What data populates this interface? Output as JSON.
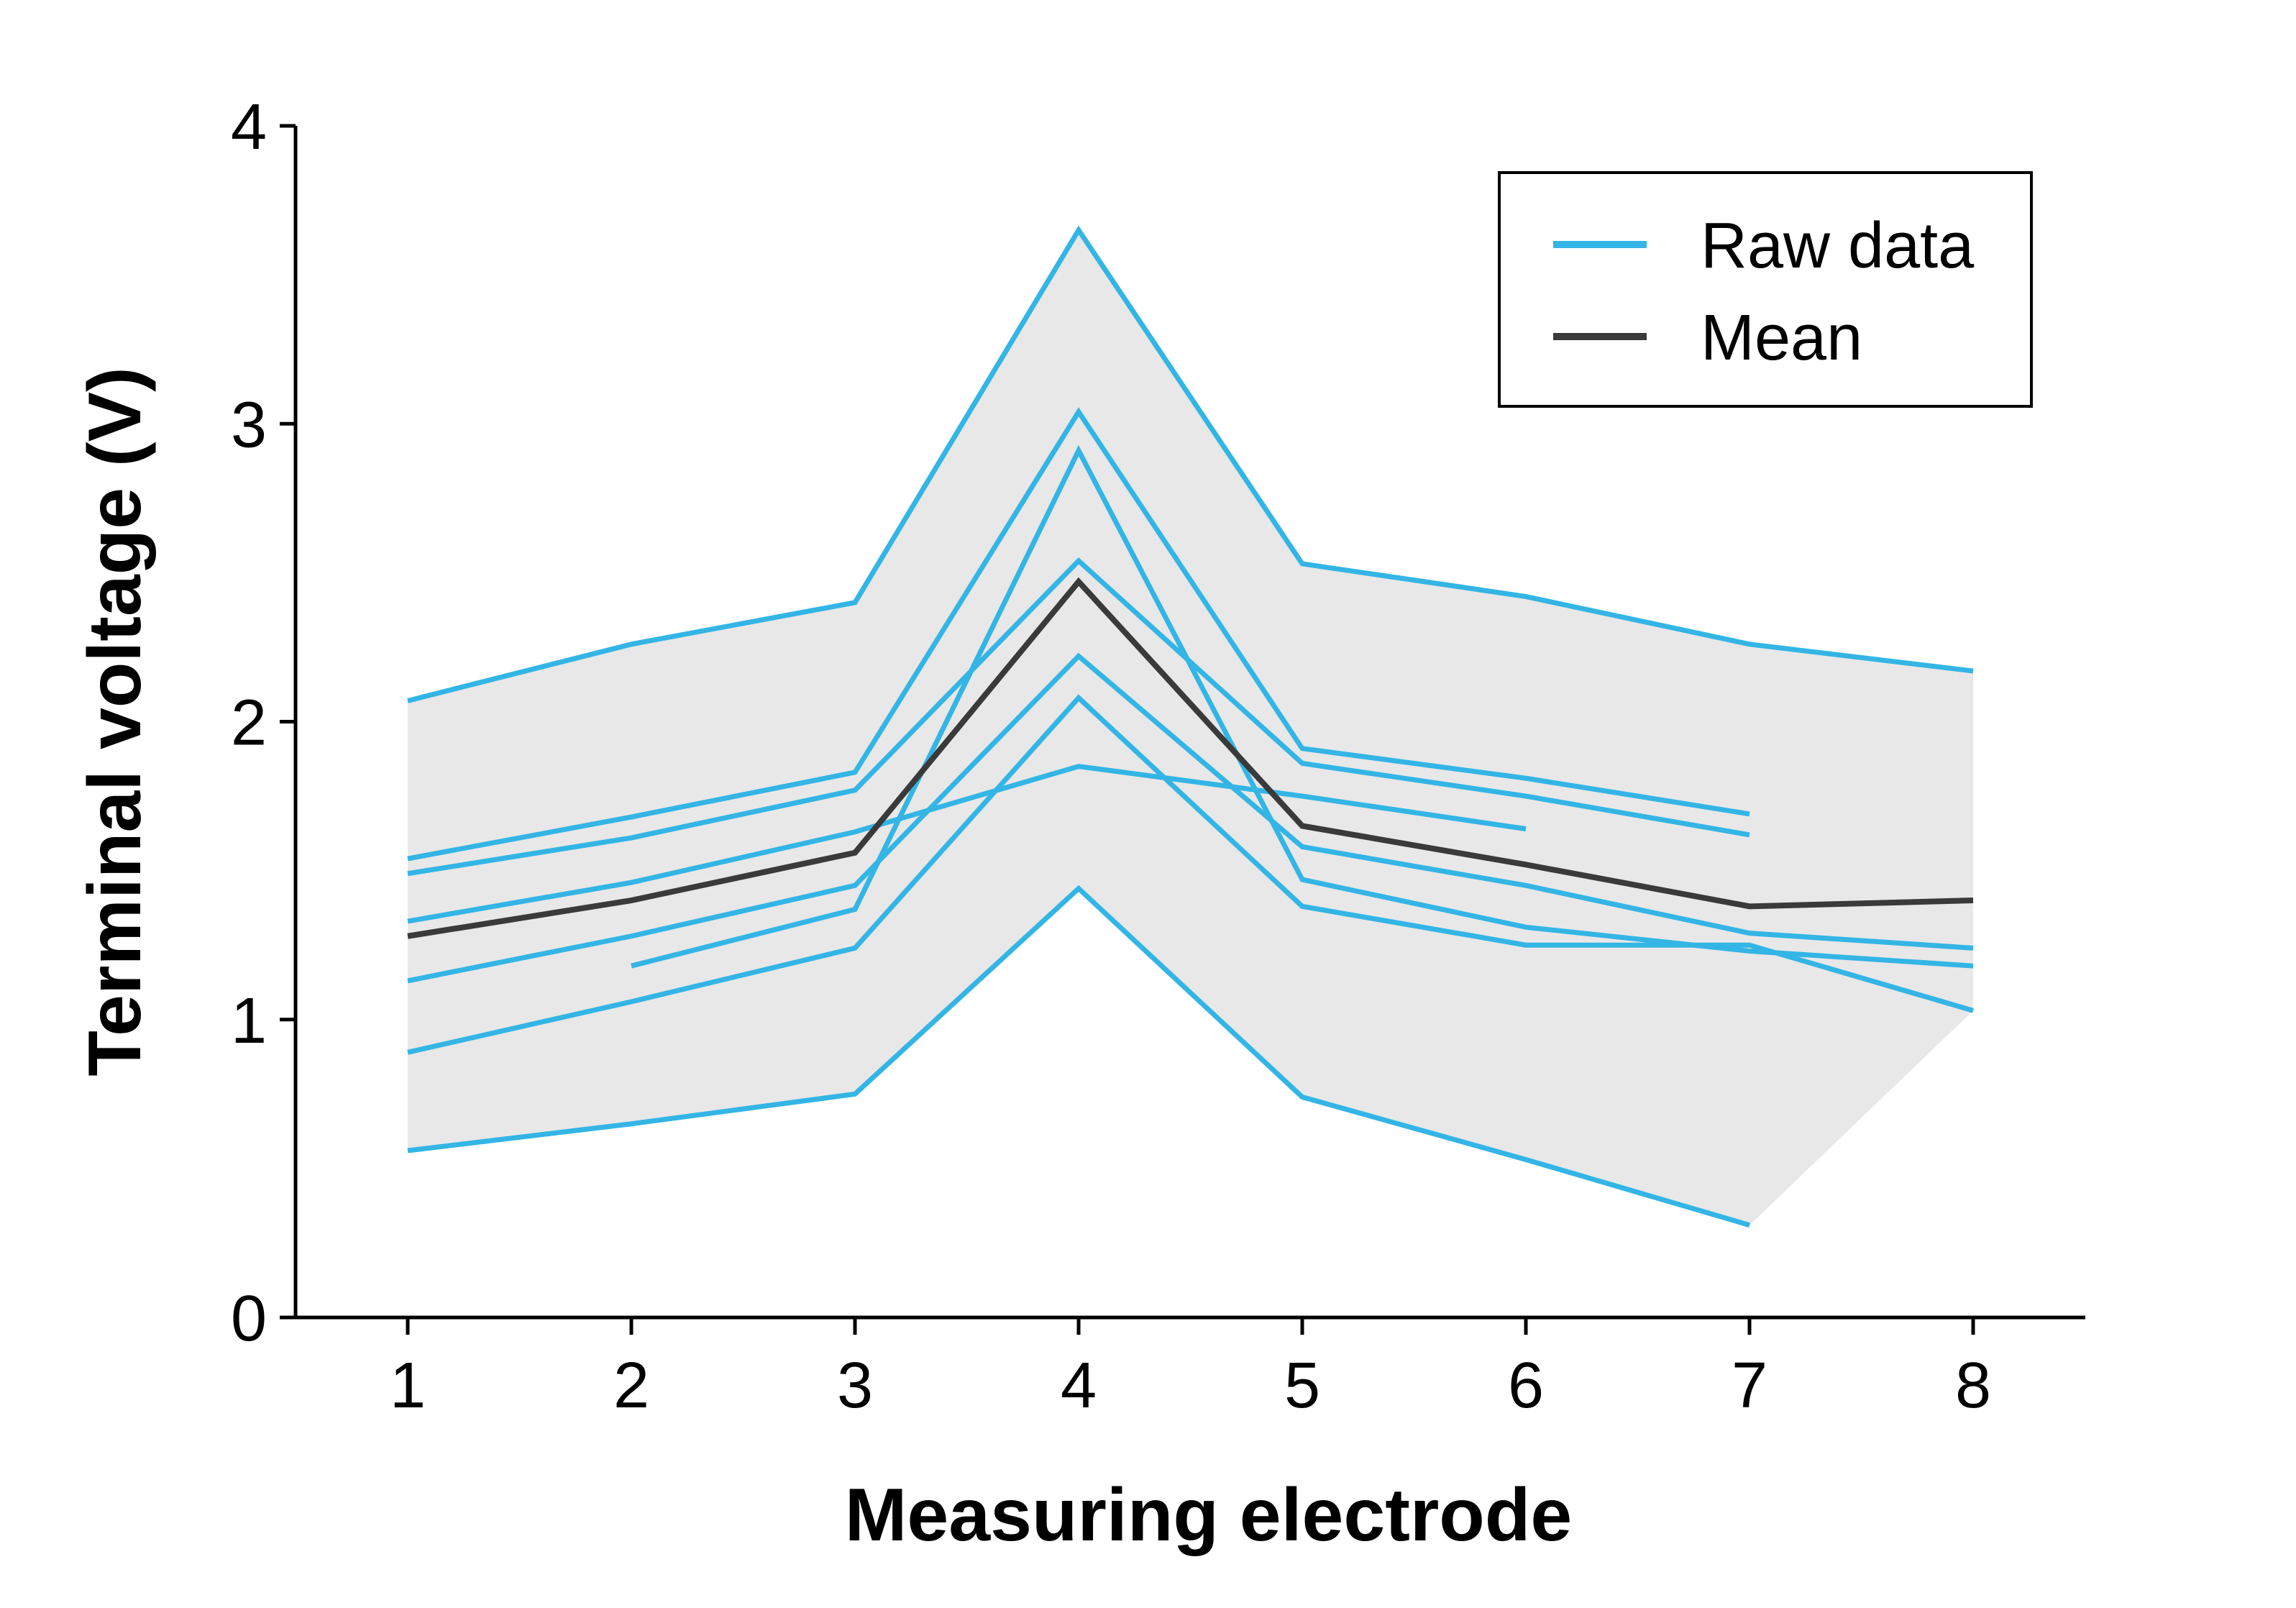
{
  "chart_data": {
    "type": "line",
    "title": "",
    "xlabel": "Measuring electrode",
    "ylabel": "Terminal voltage (V)",
    "xlim": [
      0.5,
      8.5
    ],
    "ylim": [
      0,
      4
    ],
    "x_ticks": [
      1,
      2,
      3,
      4,
      5,
      6,
      7,
      8
    ],
    "y_ticks": [
      0,
      1,
      2,
      3,
      4
    ],
    "grid": false,
    "legend": {
      "position": "top-right",
      "entries": [
        "Raw data",
        "Mean"
      ]
    },
    "colors": {
      "raw": "#33b5e5",
      "mean": "#3a3a3a",
      "band": "#e8e8e8",
      "axis": "#000000"
    },
    "range_band": {
      "x": [
        1,
        2,
        3,
        4,
        5,
        6,
        7,
        8
      ],
      "upper": [
        2.07,
        2.26,
        2.4,
        3.65,
        2.53,
        2.42,
        2.26,
        2.17
      ],
      "lower": [
        0.56,
        0.65,
        0.75,
        1.44,
        0.74,
        0.53,
        0.31,
        1.03
      ]
    },
    "series": [
      {
        "kind": "raw",
        "x": [
          1,
          2,
          3,
          4,
          5,
          6,
          7,
          8
        ],
        "values": [
          2.07,
          2.26,
          2.4,
          3.65,
          2.53,
          2.42,
          2.26,
          2.17
        ]
      },
      {
        "kind": "raw",
        "x": [
          1,
          2,
          3,
          4,
          5,
          6,
          7
        ],
        "values": [
          1.54,
          1.68,
          1.83,
          3.04,
          1.91,
          1.81,
          1.69
        ]
      },
      {
        "kind": "raw",
        "x": [
          1,
          2,
          3,
          4,
          5,
          6,
          7
        ],
        "values": [
          1.49,
          1.61,
          1.77,
          2.54,
          1.86,
          1.75,
          1.62
        ]
      },
      {
        "kind": "raw",
        "x": [
          1,
          2,
          3,
          4,
          5,
          6
        ],
        "values": [
          1.33,
          1.46,
          1.63,
          1.85,
          1.75,
          1.64
        ]
      },
      {
        "kind": "raw",
        "x": [
          1,
          2,
          3,
          4,
          5,
          6,
          7,
          8
        ],
        "values": [
          1.13,
          1.28,
          1.45,
          2.22,
          1.58,
          1.45,
          1.29,
          1.24
        ]
      },
      {
        "kind": "raw",
        "x": [
          2,
          3,
          4,
          5,
          6,
          7,
          8
        ],
        "values": [
          1.18,
          1.37,
          2.91,
          1.47,
          1.31,
          1.23,
          1.18
        ]
      },
      {
        "kind": "raw",
        "x": [
          1,
          2,
          3,
          4,
          5,
          6,
          7,
          8
        ],
        "values": [
          0.89,
          1.06,
          1.24,
          2.08,
          1.38,
          1.25,
          1.25,
          1.03
        ]
      },
      {
        "kind": "raw",
        "x": [
          1,
          2,
          3,
          4,
          5,
          6,
          7
        ],
        "values": [
          0.56,
          0.65,
          0.75,
          1.44,
          0.74,
          0.53,
          0.31
        ]
      },
      {
        "kind": "mean",
        "x": [
          1,
          2,
          3,
          4,
          5,
          6,
          7,
          8
        ],
        "values": [
          1.28,
          1.4,
          1.56,
          2.47,
          1.65,
          1.52,
          1.38,
          1.4
        ]
      }
    ]
  }
}
